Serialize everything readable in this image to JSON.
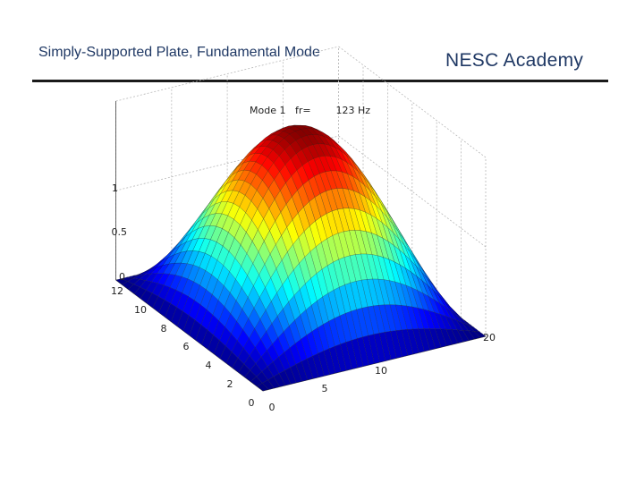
{
  "slide": {
    "title": "Simply-Supported Plate, Fundamental Mode",
    "brand": "NESC Academy"
  },
  "chart_data": {
    "type": "surface",
    "title": "Mode 1   fr=        123 Hz",
    "xlabel": "",
    "ylabel": "",
    "zlabel": "",
    "xlim": [
      0,
      20
    ],
    "ylim": [
      0,
      12
    ],
    "zlim": [
      0,
      1
    ],
    "x_ticks": [
      "0",
      "5",
      "10",
      "20"
    ],
    "y_ticks": [
      "0",
      "2",
      "4",
      "6",
      "8",
      "10",
      "12"
    ],
    "z_ticks": [
      "0",
      "0.5",
      "1"
    ],
    "surface": "z = sin(pi*x/20) * sin(pi*y/12)",
    "mode": 1,
    "frequency_hz": 123,
    "colormap": "jet",
    "grid": true,
    "colors": {
      "mesh": "#1a1a1a"
    }
  }
}
